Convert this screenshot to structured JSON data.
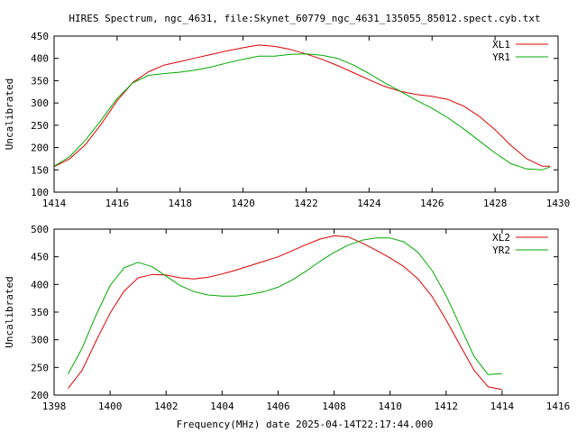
{
  "title": "HIRES Spectrum, ngc_4631, file:Skynet_60779_ngc_4631_135055_85012.spect.cyb.txt",
  "footer_xlabel": "Frequency(MHz) date 2025-04-14T22:17:44.000",
  "colors": {
    "red": "#dd0000",
    "green": "#00aa00"
  },
  "chart_data": [
    {
      "type": "line",
      "ylabel": "Uncalibrated",
      "xlim": [
        1414,
        1430
      ],
      "ylim": [
        100,
        450
      ],
      "xticks": [
        1414,
        1416,
        1418,
        1420,
        1422,
        1424,
        1426,
        1428,
        1430
      ],
      "yticks": [
        100,
        150,
        200,
        250,
        300,
        350,
        400,
        450
      ],
      "grid": false,
      "legend": "top-right",
      "series": [
        {
          "name": "XL1",
          "color": "#dd0000",
          "x": [
            1414.0,
            1414.5,
            1415.0,
            1415.5,
            1416.0,
            1416.5,
            1417.0,
            1417.5,
            1418.0,
            1418.5,
            1419.0,
            1419.5,
            1420.0,
            1420.5,
            1421.0,
            1421.5,
            1422.0,
            1422.5,
            1423.0,
            1423.5,
            1424.0,
            1424.5,
            1425.0,
            1425.5,
            1426.0,
            1426.5,
            1427.0,
            1427.5,
            1428.0,
            1428.5,
            1429.0,
            1429.5,
            1429.75
          ],
          "y": [
            157,
            175,
            207,
            253,
            305,
            346,
            370,
            385,
            393,
            401,
            409,
            417,
            424,
            430,
            427,
            420,
            410,
            398,
            384,
            368,
            352,
            337,
            326,
            319,
            315,
            308,
            293,
            270,
            240,
            205,
            175,
            158,
            158
          ]
        },
        {
          "name": "YR1",
          "color": "#00aa00",
          "x": [
            1414.0,
            1414.5,
            1415.0,
            1415.5,
            1416.0,
            1416.5,
            1417.0,
            1417.5,
            1418.0,
            1418.5,
            1419.0,
            1419.5,
            1420.0,
            1420.5,
            1421.0,
            1421.5,
            1422.0,
            1422.5,
            1423.0,
            1423.5,
            1424.0,
            1424.5,
            1425.0,
            1425.5,
            1426.0,
            1426.5,
            1427.0,
            1427.5,
            1428.0,
            1428.5,
            1429.0,
            1429.5,
            1429.75
          ],
          "y": [
            158,
            180,
            217,
            262,
            310,
            345,
            362,
            366,
            369,
            374,
            381,
            390,
            398,
            405,
            405,
            409,
            410,
            407,
            400,
            385,
            366,
            345,
            326,
            306,
            288,
            267,
            242,
            215,
            188,
            164,
            152,
            150,
            157
          ]
        }
      ]
    },
    {
      "type": "line",
      "ylabel": "Uncalibrated",
      "xlim": [
        1398,
        1416
      ],
      "ylim": [
        200,
        500
      ],
      "xticks": [
        1398,
        1400,
        1402,
        1404,
        1406,
        1408,
        1410,
        1412,
        1414,
        1416
      ],
      "yticks": [
        200,
        250,
        300,
        350,
        400,
        450,
        500
      ],
      "grid": false,
      "legend": "top-right",
      "series": [
        {
          "name": "XL2",
          "color": "#dd0000",
          "x": [
            1398.5,
            1399.0,
            1399.5,
            1400.0,
            1400.5,
            1401.0,
            1401.5,
            1402.0,
            1402.5,
            1403.0,
            1403.5,
            1404.0,
            1404.5,
            1405.0,
            1405.5,
            1406.0,
            1406.5,
            1407.0,
            1407.5,
            1408.0,
            1408.5,
            1409.0,
            1409.5,
            1410.0,
            1410.5,
            1411.0,
            1411.5,
            1412.0,
            1412.5,
            1413.0,
            1413.5,
            1414.0
          ],
          "y": [
            212,
            245,
            298,
            348,
            388,
            412,
            418,
            417,
            412,
            410,
            413,
            419,
            426,
            434,
            442,
            450,
            461,
            472,
            482,
            488,
            486,
            475,
            462,
            448,
            432,
            410,
            378,
            336,
            290,
            245,
            215,
            210
          ]
        },
        {
          "name": "YR2",
          "color": "#00aa00",
          "x": [
            1398.5,
            1399.0,
            1399.5,
            1400.0,
            1400.5,
            1401.0,
            1401.5,
            1402.0,
            1402.5,
            1403.0,
            1403.5,
            1404.0,
            1404.5,
            1405.0,
            1405.5,
            1406.0,
            1406.5,
            1407.0,
            1407.5,
            1408.0,
            1408.5,
            1409.0,
            1409.5,
            1410.0,
            1410.5,
            1411.0,
            1411.5,
            1412.0,
            1412.5,
            1413.0,
            1413.5,
            1414.0
          ],
          "y": [
            238,
            285,
            345,
            398,
            430,
            440,
            432,
            415,
            398,
            387,
            381,
            379,
            379,
            382,
            387,
            395,
            408,
            424,
            442,
            458,
            471,
            480,
            484,
            484,
            477,
            458,
            425,
            380,
            325,
            270,
            237,
            239
          ]
        }
      ]
    }
  ]
}
